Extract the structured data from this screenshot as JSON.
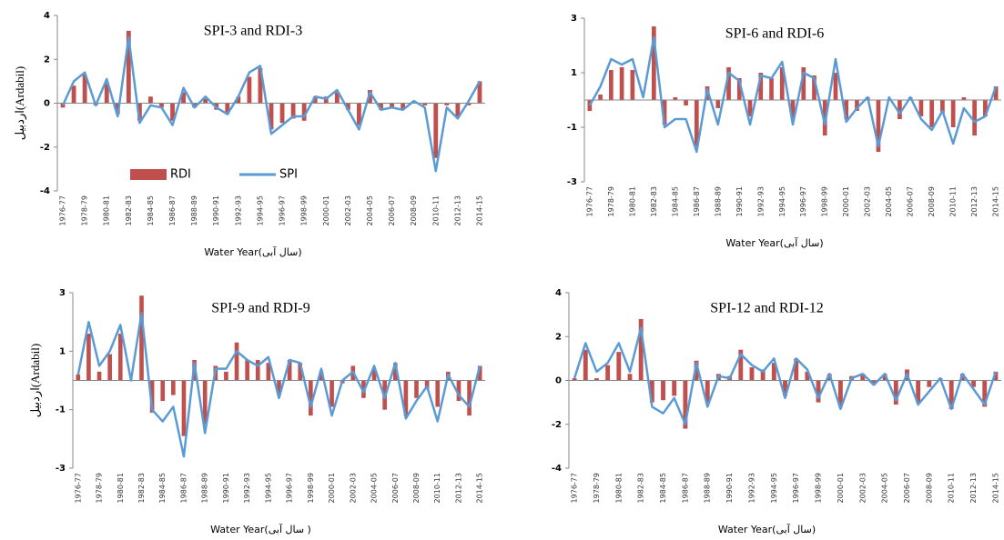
{
  "chart_data": [
    {
      "type": "combo",
      "title": "SPI-3 and RDI-3",
      "xlabel": "Water Year(سال آبی)",
      "ylabel": "اردبیل(Ardabil)",
      "categories": [
        "1976-77",
        null,
        "1978-79",
        null,
        "1980-81",
        null,
        "1982-83",
        null,
        "1984-85",
        null,
        "1986-87",
        null,
        "1988-89",
        null,
        "1990-91",
        null,
        "1992-93",
        null,
        "1994-95",
        null,
        "1996-97",
        null,
        "1998-99",
        null,
        "2000-01",
        null,
        "2002-03",
        null,
        "2004-05",
        null,
        "2006-07",
        null,
        "2008-09",
        null,
        "2010-11",
        null,
        "2012-13",
        null,
        "2014-15"
      ],
      "ylim": [
        -4,
        4
      ],
      "yticks": [
        -4,
        -2,
        0,
        2,
        4
      ],
      "grid": false,
      "legend": "lower left",
      "series": [
        {
          "name": "RDI",
          "type": "bar",
          "color": "#c0504d",
          "values": [
            -0.2,
            0.8,
            1.3,
            -0.1,
            0.9,
            -0.5,
            3.3,
            -0.8,
            0.3,
            -0.2,
            -0.8,
            0.5,
            -0.2,
            0.2,
            -0.3,
            -0.5,
            0.3,
            1.2,
            1.6,
            -1.2,
            -0.9,
            -0.7,
            -0.8,
            0.3,
            0.3,
            0.5,
            -0.3,
            -1.0,
            0.6,
            -0.3,
            -0.2,
            -0.3,
            0.1,
            -0.1,
            -2.5,
            -0.1,
            -0.6,
            -0.1,
            1.0
          ]
        },
        {
          "name": "SPI",
          "type": "line",
          "color": "#5b9bd5",
          "values": [
            -0.1,
            1.0,
            1.4,
            -0.1,
            1.1,
            -0.6,
            3.0,
            -0.9,
            -0.1,
            -0.2,
            -1.0,
            0.7,
            -0.2,
            0.3,
            -0.2,
            -0.5,
            0.3,
            1.4,
            1.7,
            -1.4,
            -1.0,
            -0.6,
            -0.6,
            0.3,
            0.2,
            0.6,
            -0.3,
            -1.2,
            0.5,
            -0.3,
            -0.2,
            -0.3,
            0.1,
            -0.2,
            -3.1,
            -0.2,
            -0.7,
            0.1,
            1.0
          ]
        }
      ]
    },
    {
      "type": "combo",
      "title": "SPI-6 and RDI-6",
      "xlabel": "Water Year(سال آبی)",
      "categories": [
        "1976-77",
        null,
        "1978-79",
        null,
        "1980-81",
        null,
        "1982-83",
        null,
        "1984-85",
        null,
        "1986-87",
        null,
        "1988-89",
        null,
        "1990-91",
        null,
        "1992-93",
        null,
        "1994-95",
        null,
        "1996-97",
        null,
        "1998-99",
        null,
        "2000-01",
        null,
        "2002-03",
        null,
        "2004-05",
        null,
        "2006-07",
        null,
        "2008-09",
        null,
        "2010-11",
        null,
        "2012-13",
        null,
        "2014-15"
      ],
      "ylim": [
        -3,
        3
      ],
      "yticks": [
        -3,
        -1,
        1,
        3
      ],
      "grid": false,
      "series": [
        {
          "type": "bar",
          "color": "#c0504d",
          "values": [
            -0.4,
            0.2,
            1.1,
            1.2,
            1.1,
            0.0,
            2.7,
            -0.9,
            0.1,
            -0.2,
            -1.7,
            0.5,
            -0.3,
            1.2,
            0.8,
            -0.6,
            1.0,
            0.8,
            1.2,
            -0.7,
            1.2,
            0.9,
            -1.3,
            1.0,
            -0.7,
            -0.4,
            0.1,
            -1.9,
            0.0,
            -0.7,
            0.1,
            -0.6,
            -1.0,
            -0.5,
            -1.0,
            0.1,
            -1.3,
            -0.6,
            0.5
          ]
        },
        {
          "type": "line",
          "color": "#5b9bd5",
          "values": [
            -0.2,
            0.5,
            1.5,
            1.3,
            1.5,
            0.1,
            2.3,
            -1.0,
            -0.7,
            -0.7,
            -1.9,
            0.4,
            -0.9,
            1.0,
            0.7,
            -0.9,
            0.9,
            0.8,
            1.4,
            -0.9,
            1.0,
            0.8,
            -0.9,
            1.5,
            -0.8,
            -0.3,
            0.1,
            -1.7,
            0.1,
            -0.5,
            0.1,
            -0.7,
            -1.1,
            -0.4,
            -1.6,
            -0.3,
            -0.8,
            -0.6,
            0.5
          ]
        }
      ]
    },
    {
      "type": "combo",
      "title": "SPI-9 and RDI-9",
      "xlabel": "Water Year(سال آبی )",
      "ylabel": "اردبیل(Ardabil)",
      "categories": [
        "1976-77",
        null,
        "1978-79",
        null,
        "1980-81",
        null,
        "1982-83",
        null,
        "1984-85",
        null,
        "1986-87",
        null,
        "1988-89",
        null,
        "1990-91",
        null,
        "1992-93",
        null,
        "1994-95",
        null,
        "1996-97",
        null,
        "1998-99",
        null,
        "2000-01",
        null,
        "2002-03",
        null,
        "2004-05",
        null,
        "2006-07",
        null,
        "2008-09",
        null,
        "2010-11",
        null,
        "2012-13",
        null,
        "2014-15"
      ],
      "ylim": [
        -3,
        3
      ],
      "yticks": [
        -3,
        -1,
        1,
        3
      ],
      "grid": false,
      "series": [
        {
          "type": "bar",
          "color": "#c0504d",
          "values": [
            0.2,
            1.6,
            0.3,
            0.9,
            1.6,
            0.0,
            2.9,
            -1.1,
            -0.7,
            -0.5,
            -1.9,
            0.7,
            -1.5,
            0.5,
            0.3,
            1.3,
            0.7,
            0.7,
            0.6,
            -0.5,
            0.7,
            0.6,
            -1.2,
            0.3,
            -0.9,
            -0.1,
            0.5,
            -0.6,
            0.4,
            -1.0,
            0.6,
            -1.2,
            -0.6,
            -0.3,
            -0.9,
            0.3,
            -0.7,
            -1.2,
            0.5
          ]
        },
        {
          "type": "line",
          "color": "#5b9bd5",
          "values": [
            0.2,
            2.0,
            0.5,
            1.0,
            1.9,
            0.0,
            2.3,
            -1.0,
            -1.4,
            -0.9,
            -2.6,
            0.6,
            -1.8,
            0.4,
            0.4,
            1.0,
            0.7,
            0.5,
            0.8,
            -0.6,
            0.7,
            0.6,
            -0.9,
            0.4,
            -1.2,
            0.0,
            0.3,
            -0.4,
            0.5,
            -0.6,
            0.6,
            -1.3,
            -0.7,
            -0.2,
            -1.4,
            0.2,
            -0.5,
            -0.9,
            0.5
          ]
        }
      ]
    },
    {
      "type": "combo",
      "title": "SPI-12 and RDI-12",
      "xlabel": "Water Year(سال آبی)",
      "categories": [
        "1976-77",
        null,
        "1978-79",
        null,
        "1980-81",
        null,
        "1982-83",
        null,
        "1984-85",
        null,
        "1986-87",
        null,
        "1988-89",
        null,
        "1990-91",
        null,
        "1992-93",
        null,
        "1994-95",
        null,
        "1996-97",
        null,
        "1998-99",
        null,
        "2000-01",
        null,
        "2002-03",
        null,
        "2004-05",
        null,
        "2006-07",
        null,
        "2008-09",
        null,
        "2010-11",
        null,
        "2012-13",
        null,
        "2014-15"
      ],
      "ylim": [
        -4,
        4
      ],
      "yticks": [
        -4,
        -2,
        0,
        2,
        4
      ],
      "grid": false,
      "series": [
        {
          "type": "bar",
          "color": "#c0504d",
          "values": [
            0.1,
            1.4,
            0.1,
            0.7,
            1.3,
            0.3,
            2.8,
            -1.0,
            -0.9,
            -0.7,
            -2.2,
            0.9,
            -1.0,
            0.3,
            0.2,
            1.4,
            0.6,
            0.5,
            0.8,
            -0.7,
            1.0,
            0.4,
            -1.0,
            0.3,
            -1.2,
            0.2,
            0.3,
            -0.2,
            0.3,
            -1.1,
            0.5,
            -1.0,
            -0.3,
            0.1,
            -1.3,
            0.3,
            -0.3,
            -1.2,
            0.4
          ]
        },
        {
          "type": "line",
          "color": "#5b9bd5",
          "values": [
            0.1,
            1.7,
            0.4,
            0.8,
            1.7,
            0.4,
            2.4,
            -1.2,
            -1.5,
            -0.8,
            -2.0,
            0.8,
            -1.2,
            0.2,
            0.1,
            1.2,
            0.7,
            0.4,
            1.0,
            -0.8,
            1.0,
            0.5,
            -0.8,
            0.3,
            -1.3,
            0.1,
            0.3,
            -0.2,
            0.3,
            -0.9,
            0.3,
            -1.1,
            -0.5,
            0.1,
            -1.3,
            0.3,
            -0.4,
            -1.1,
            0.4
          ]
        }
      ]
    }
  ]
}
